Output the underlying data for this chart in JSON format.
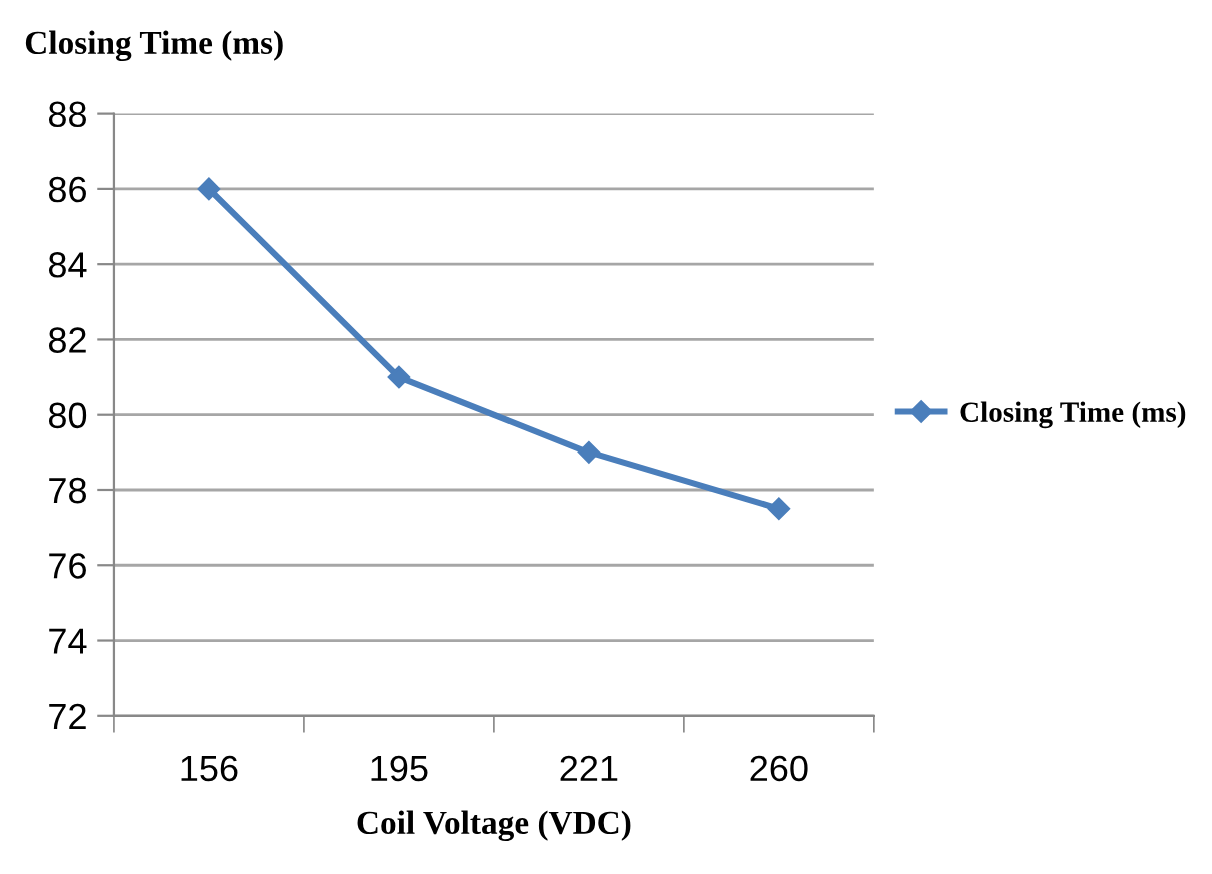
{
  "chart_data": {
    "type": "line",
    "ylabel": "Closing Time (ms)",
    "xlabel": "Coil Voltage (VDC)",
    "categories": [
      "156",
      "195",
      "221",
      "260"
    ],
    "series": [
      {
        "name": "Closing Time (ms)",
        "color": "#4a7ebb",
        "values": [
          86,
          81,
          79,
          77.5
        ]
      }
    ],
    "ylim": [
      72,
      88
    ],
    "yticks": [
      72,
      74,
      76,
      78,
      80,
      82,
      84,
      86,
      88
    ],
    "grid": "y",
    "legend": "right",
    "marker": "diamond",
    "line_style": "solid"
  }
}
